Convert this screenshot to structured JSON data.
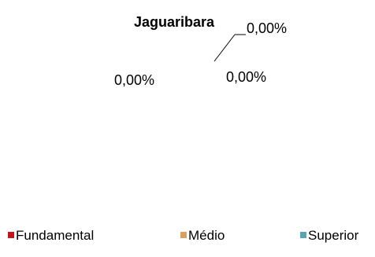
{
  "chart_data": {
    "type": "pie",
    "title": "Jaguaribara",
    "categories": [
      "Fundamental",
      "Médio",
      "Superior"
    ],
    "values": [
      0,
      0,
      0
    ],
    "data_labels": [
      "0,00%",
      "0,00%",
      "0,00%"
    ],
    "colors": [
      "#c0151b",
      "#d9a066",
      "#5aa3b3"
    ],
    "legend_position": "bottom"
  }
}
